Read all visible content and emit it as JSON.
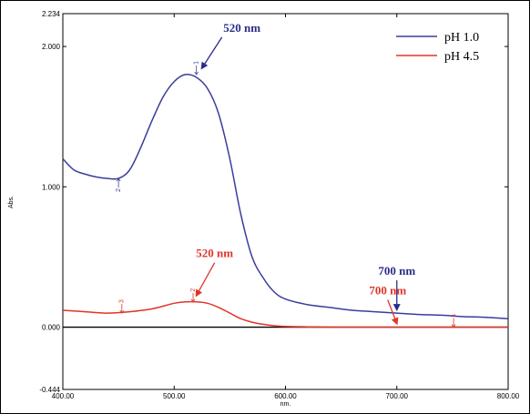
{
  "chart_data": {
    "type": "line",
    "title": "",
    "xlabel": "nm.",
    "ylabel": "Abs.",
    "xlim": [
      400.0,
      800.0
    ],
    "ylim": [
      -0.444,
      2.234
    ],
    "x_ticks": [
      "400.00",
      "500.00",
      "600.00",
      "700.00",
      "800.00"
    ],
    "y_ticks": [
      {
        "value": 2.234,
        "label": "2.234"
      },
      {
        "value": 2.0,
        "label": "2.000"
      },
      {
        "value": 1.0,
        "label": "1.000"
      },
      {
        "value": 0.0,
        "label": "0.000"
      },
      {
        "value": -0.444,
        "label": "-0.444"
      }
    ],
    "grid": false,
    "legend_position": "top-right",
    "series": [
      {
        "name": "pH 1.0",
        "color": "#3a3d9a",
        "x": [
          400,
          410,
          420,
          430,
          440,
          450,
          460,
          470,
          480,
          490,
          500,
          510,
          520,
          530,
          540,
          550,
          560,
          570,
          580,
          590,
          600,
          620,
          640,
          660,
          680,
          700,
          720,
          740,
          760,
          780,
          800
        ],
        "y": [
          1.2,
          1.12,
          1.09,
          1.07,
          1.06,
          1.06,
          1.12,
          1.28,
          1.47,
          1.64,
          1.75,
          1.8,
          1.78,
          1.7,
          1.52,
          1.2,
          0.8,
          0.5,
          0.35,
          0.25,
          0.2,
          0.16,
          0.14,
          0.12,
          0.11,
          0.1,
          0.09,
          0.085,
          0.075,
          0.07,
          0.06
        ]
      },
      {
        "name": "pH 4.5",
        "color": "#e0352b",
        "x": [
          400,
          420,
          440,
          460,
          480,
          500,
          510,
          520,
          530,
          540,
          550,
          560,
          570,
          580,
          590,
          600,
          620,
          650,
          700,
          750,
          800
        ],
        "y": [
          0.12,
          0.11,
          0.1,
          0.11,
          0.13,
          0.17,
          0.18,
          0.18,
          0.17,
          0.14,
          0.1,
          0.06,
          0.035,
          0.02,
          0.01,
          0.005,
          0.002,
          0.0,
          0.0,
          0.0,
          0.0
        ]
      }
    ],
    "peak_markers": [
      {
        "series": 0,
        "x": 520,
        "y": 1.8,
        "label": "1"
      },
      {
        "series": 0,
        "x": 450,
        "y": 1.06,
        "label": "2"
      },
      {
        "series": 1,
        "x": 517,
        "y": 0.18,
        "label": "2"
      },
      {
        "series": 1,
        "x": 453,
        "y": 0.1,
        "label": "3"
      },
      {
        "series": 1,
        "x": 751,
        "y": 0.0,
        "label": "1"
      }
    ],
    "annotations": [
      {
        "text": "520 nm",
        "color": "#2a2d8a",
        "target_x": 520,
        "target_y": 1.82
      },
      {
        "text": "700 nm",
        "color": "#2a2d8a",
        "target_x": 700,
        "target_y": 0.1
      },
      {
        "text": "520 nm",
        "color": "#e0352b",
        "target_x": 520,
        "target_y": 0.2
      },
      {
        "text": "700 nm",
        "color": "#e0352b",
        "target_x": 700,
        "target_y": 0.0
      }
    ]
  }
}
